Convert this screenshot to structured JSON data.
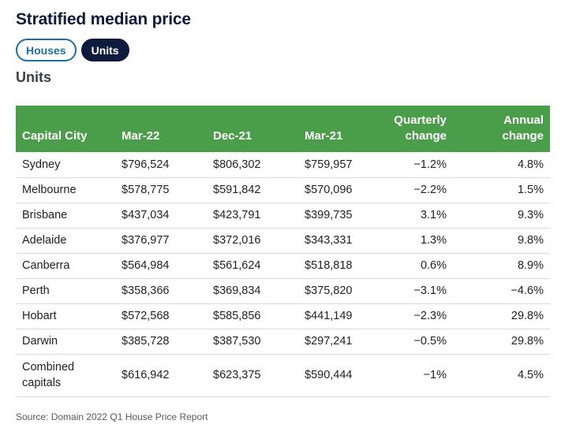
{
  "title": "Stratified median price",
  "tabs": [
    {
      "label": "Houses",
      "active": false
    },
    {
      "label": "Units",
      "active": true
    }
  ],
  "subtitle": "Units",
  "table": {
    "headers": {
      "city": "Capital City",
      "mar22": "Mar-22",
      "dec21": "Dec-21",
      "mar21": "Mar-21",
      "quarterly_line1": "Quarterly",
      "quarterly_line2": "change",
      "annual_line1": "Annual",
      "annual_line2": "change"
    },
    "rows": [
      {
        "city": "Sydney",
        "mar22": "$796,524",
        "dec21": "$806,302",
        "mar21": "$759,957",
        "quarterly": "−1.2%",
        "annual": "4.8%"
      },
      {
        "city": "Melbourne",
        "mar22": "$578,775",
        "dec21": "$591,842",
        "mar21": "$570,096",
        "quarterly": "−2.2%",
        "annual": "1.5%"
      },
      {
        "city": "Brisbane",
        "mar22": "$437,034",
        "dec21": "$423,791",
        "mar21": "$399,735",
        "quarterly": "3.1%",
        "annual": "9.3%"
      },
      {
        "city": "Adelaide",
        "mar22": "$376,977",
        "dec21": "$372,016",
        "mar21": "$343,331",
        "quarterly": "1.3%",
        "annual": "9.8%"
      },
      {
        "city": "Canberra",
        "mar22": "$564,984",
        "dec21": "$561,624",
        "mar21": "$518,818",
        "quarterly": "0.6%",
        "annual": "8.9%"
      },
      {
        "city": "Perth",
        "mar22": "$358,366",
        "dec21": "$369,834",
        "mar21": "$375,820",
        "quarterly": "−3.1%",
        "annual": "−4.6%"
      },
      {
        "city": "Hobart",
        "mar22": "$572,568",
        "dec21": "$585,856",
        "mar21": "$441,149",
        "quarterly": "−2.3%",
        "annual": "29.8%"
      },
      {
        "city": "Darwin",
        "mar22": "$385,728",
        "dec21": "$387,530",
        "mar21": "$297,241",
        "quarterly": "−0.5%",
        "annual": "29.8%"
      },
      {
        "city": "Combined\ncapitals",
        "mar22": "$616,942",
        "dec21": "$623,375",
        "mar21": "$590,444",
        "quarterly": "−1%",
        "annual": "4.5%"
      }
    ]
  },
  "source": "Source: Domain 2022 Q1 House Price Report",
  "colors": {
    "header_green": "#4a9e4a",
    "navy": "#0f1b3d",
    "blue": "#1d6fa8"
  }
}
